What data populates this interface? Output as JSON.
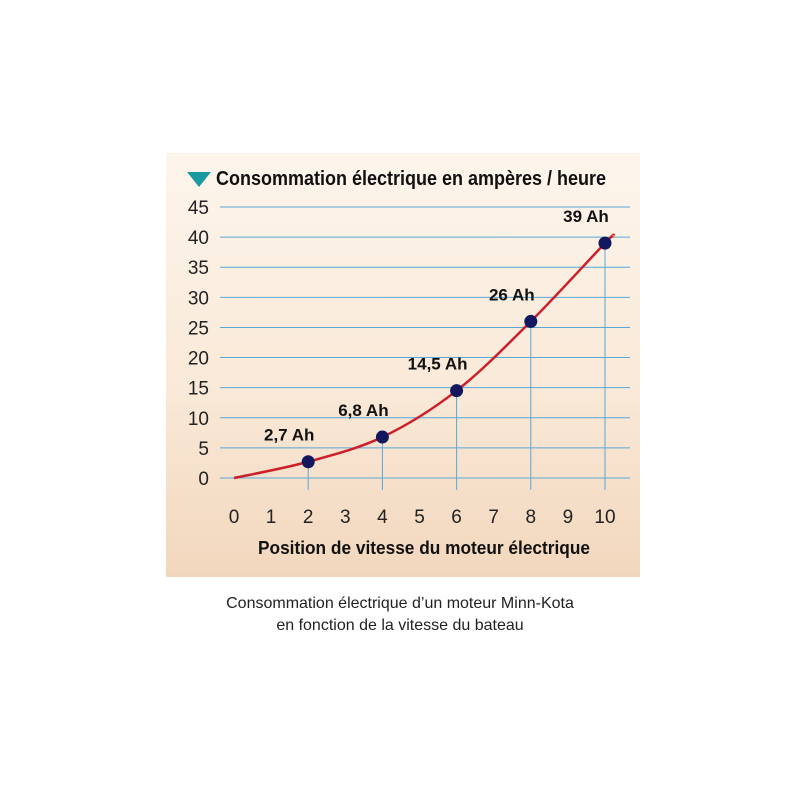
{
  "chart_data": {
    "type": "line",
    "title": "Consommation électrique en ampères / heure",
    "xlabel": "Position de vitesse du moteur électrique",
    "ylabel": "",
    "xlim": [
      0,
      10
    ],
    "ylim": [
      0,
      45
    ],
    "x_ticks": [
      0,
      1,
      2,
      3,
      4,
      5,
      6,
      7,
      8,
      9,
      10
    ],
    "y_ticks": [
      0,
      5,
      10,
      15,
      20,
      25,
      30,
      35,
      40,
      45
    ],
    "grid": "horizontal",
    "series": [
      {
        "x": [
          2,
          4,
          6,
          8,
          10
        ],
        "y": [
          2.7,
          6.8,
          14.5,
          26,
          39
        ],
        "labels": [
          "2,7 Ah",
          "6,8 Ah",
          "14,5 Ah",
          "26 Ah",
          "39 Ah"
        ]
      }
    ],
    "colors": {
      "curve": "#cc1f2a",
      "marker": "#13175e",
      "grid": "#5aa7d6",
      "title_marker": "#1a9a9e"
    }
  },
  "caption": {
    "line1": "Consommation électrique d’un moteur Minn-Kota",
    "line2": "en fonction de la vitesse du bateau"
  }
}
